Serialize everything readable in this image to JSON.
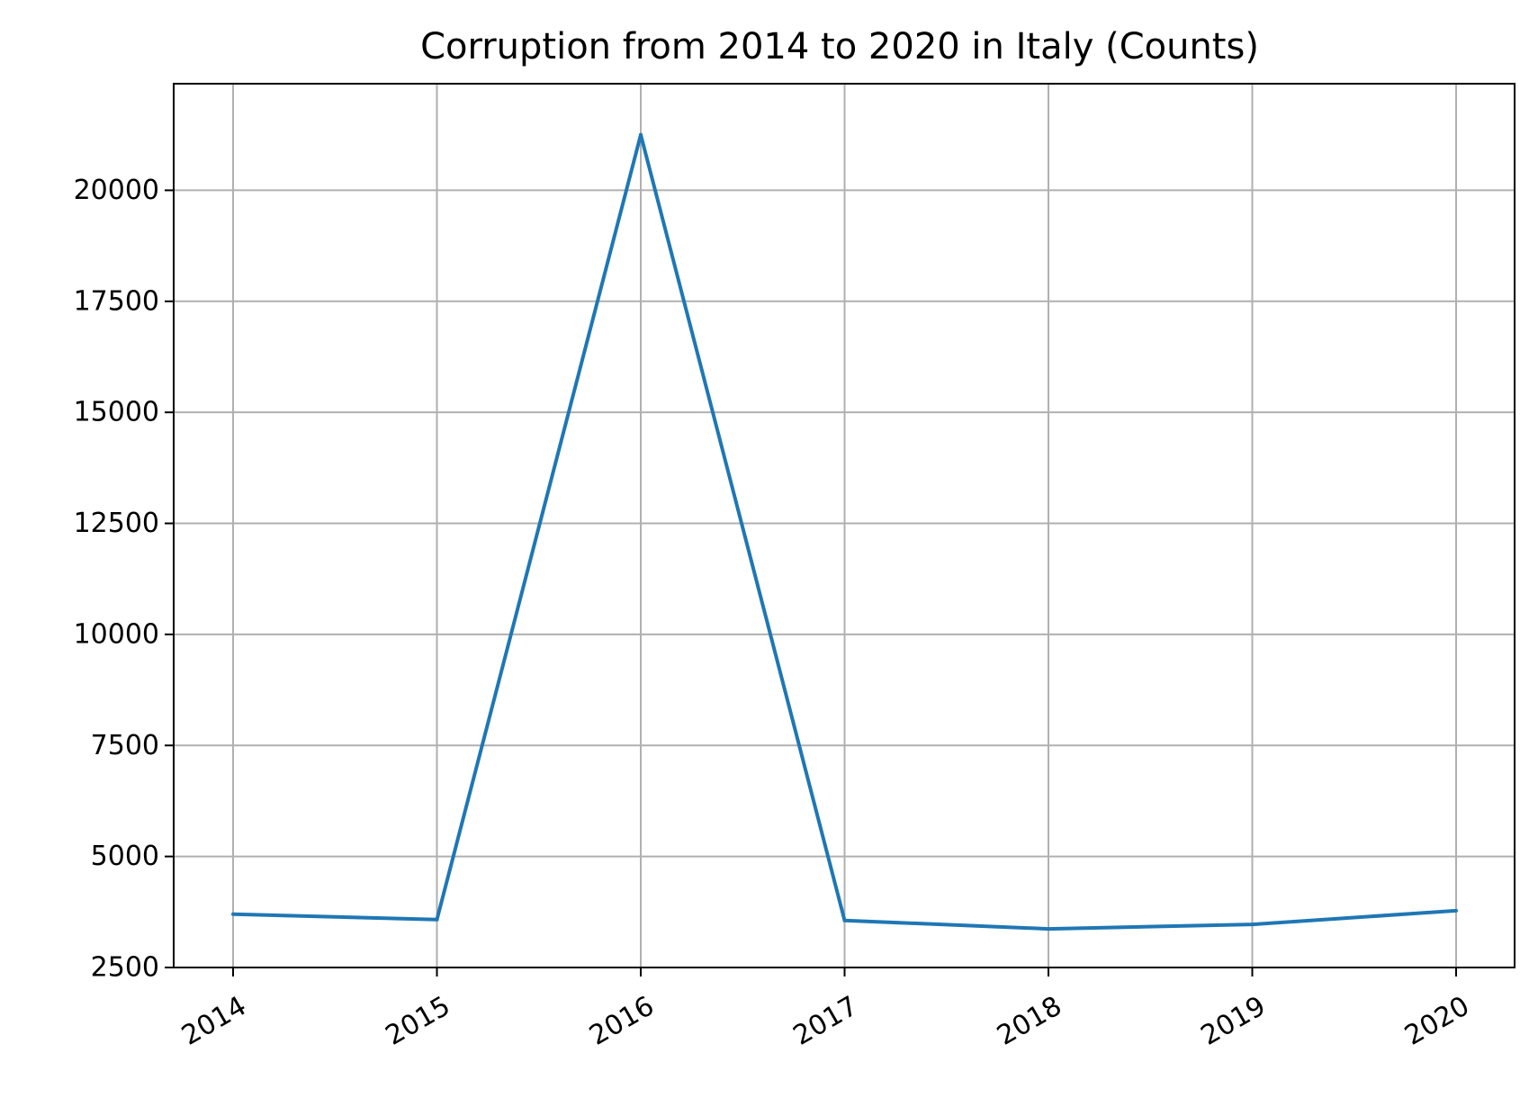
{
  "chart_data": {
    "type": "line",
    "title": "Corruption from 2014 to 2020 in Italy (Counts)",
    "xlabel": "",
    "ylabel": "",
    "categories": [
      "2014",
      "2015",
      "2016",
      "2017",
      "2018",
      "2019",
      "2020"
    ],
    "series": [
      {
        "values": [
          3700,
          3580,
          21250,
          3560,
          3370,
          3470,
          3780
        ],
        "color": "#1f77b4"
      }
    ],
    "ylim": [
      2500,
      22400
    ],
    "yticks": [
      2500,
      5000,
      7500,
      10000,
      12500,
      15000,
      17500,
      20000
    ],
    "ytick_labels": [
      "2500",
      "5000",
      "7500",
      "10000",
      "12500",
      "15000",
      "17500",
      "20000"
    ],
    "grid": true,
    "legend": "none",
    "xtick_rotation": 30
  }
}
